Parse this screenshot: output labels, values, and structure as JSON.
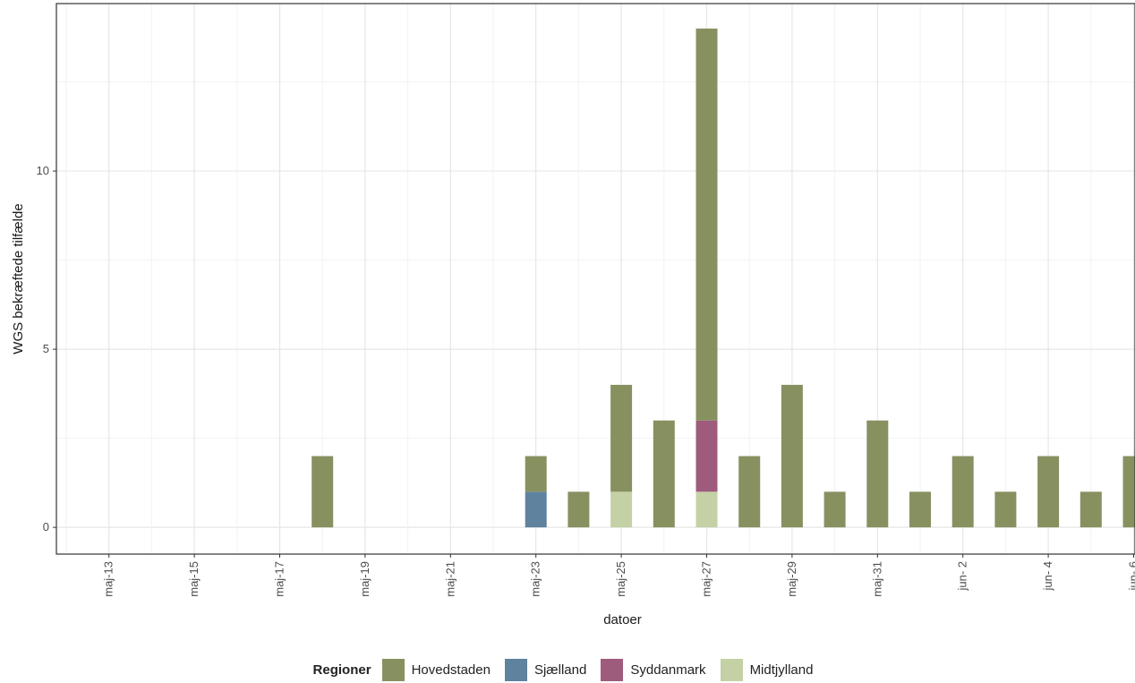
{
  "chart_data": {
    "type": "bar",
    "stacked": true,
    "title": "",
    "xlabel": "datoer",
    "ylabel": "WGS bekræftede tilfælde",
    "ylim": [
      -0.75,
      14.7
    ],
    "yticks": [
      0,
      5,
      10
    ],
    "x_ticks": [
      "maj-13",
      "maj-15",
      "maj-17",
      "maj-19",
      "maj-21",
      "maj-23",
      "maj-25",
      "maj-27",
      "maj-29",
      "maj-31",
      "jun- 2",
      "jun- 4",
      "jun- 6"
    ],
    "categories": [
      "maj-12",
      "maj-13",
      "maj-14",
      "maj-15",
      "maj-16",
      "maj-17",
      "maj-18",
      "maj-19",
      "maj-20",
      "maj-21",
      "maj-22",
      "maj-23",
      "maj-24",
      "maj-25",
      "maj-26",
      "maj-27",
      "maj-28",
      "maj-29",
      "maj-30",
      "maj-31",
      "jun- 1",
      "jun- 2",
      "jun- 3",
      "jun- 4",
      "jun- 5",
      "jun- 6"
    ],
    "grid": true,
    "legend_position": "bottom",
    "series": [
      {
        "name": "Midtjylland",
        "color": "#c4d1a5",
        "values": [
          0,
          0,
          0,
          0,
          0,
          0,
          0,
          0,
          0,
          0,
          0,
          0,
          0,
          1,
          0,
          1,
          0,
          0,
          0,
          0,
          0,
          0,
          0,
          0,
          0,
          0
        ]
      },
      {
        "name": "Syddanmark",
        "color": "#9e5b7b",
        "values": [
          0,
          0,
          0,
          0,
          0,
          0,
          0,
          0,
          0,
          0,
          0,
          0,
          0,
          0,
          0,
          2,
          0,
          0,
          0,
          0,
          0,
          0,
          0,
          0,
          0,
          0
        ]
      },
      {
        "name": "Sjælland",
        "color": "#5f829f",
        "values": [
          0,
          0,
          0,
          0,
          0,
          0,
          0,
          0,
          0,
          0,
          0,
          1,
          0,
          0,
          0,
          0,
          0,
          0,
          0,
          0,
          0,
          0,
          0,
          0,
          0,
          0
        ]
      },
      {
        "name": "Hovedstaden",
        "color": "#879160",
        "values": [
          0,
          0,
          0,
          0,
          0,
          0,
          2,
          0,
          0,
          0,
          0,
          1,
          1,
          3,
          3,
          11,
          2,
          4,
          1,
          3,
          1,
          2,
          1,
          2,
          1,
          2
        ]
      }
    ]
  },
  "legend": {
    "title": "Regioner",
    "items": [
      {
        "label": "Hovedstaden",
        "color": "#879160"
      },
      {
        "label": "Sjælland",
        "color": "#5f829f"
      },
      {
        "label": "Syddanmark",
        "color": "#9e5b7b"
      },
      {
        "label": "Midtjylland",
        "color": "#c4d1a5"
      }
    ]
  }
}
